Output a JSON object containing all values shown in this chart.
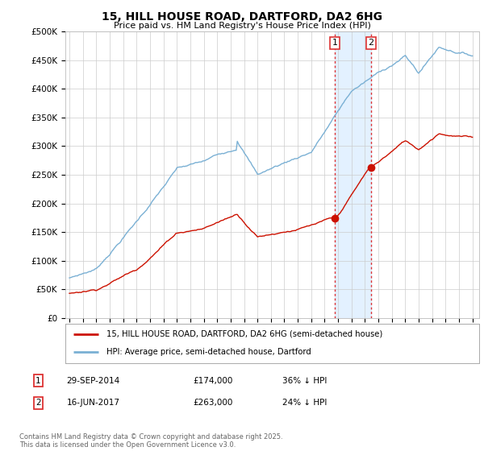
{
  "title": "15, HILL HOUSE ROAD, DARTFORD, DA2 6HG",
  "subtitle": "Price paid vs. HM Land Registry's House Price Index (HPI)",
  "ylabel_ticks": [
    "£0",
    "£50K",
    "£100K",
    "£150K",
    "£200K",
    "£250K",
    "£300K",
    "£350K",
    "£400K",
    "£450K",
    "£500K"
  ],
  "ytick_values": [
    0,
    50000,
    100000,
    150000,
    200000,
    250000,
    300000,
    350000,
    400000,
    450000,
    500000
  ],
  "xlim_start": 1994.7,
  "xlim_end": 2025.5,
  "ylim": [
    0,
    500000
  ],
  "hpi_color": "#7ab0d4",
  "price_color": "#cc1100",
  "shade_color": "#ddeeff",
  "vline_color": "#dd3333",
  "transaction1_date": 2014.75,
  "transaction2_date": 2017.46,
  "transaction1_price": 174000,
  "transaction2_price": 263000,
  "legend_label1": "15, HILL HOUSE ROAD, DARTFORD, DA2 6HG (semi-detached house)",
  "legend_label2": "HPI: Average price, semi-detached house, Dartford",
  "note1_num": "1",
  "note1_date": "29-SEP-2014",
  "note1_price": "£174,000",
  "note1_hpi": "36% ↓ HPI",
  "note2_num": "2",
  "note2_date": "16-JUN-2017",
  "note2_price": "£263,000",
  "note2_hpi": "24% ↓ HPI",
  "footer": "Contains HM Land Registry data © Crown copyright and database right 2025.\nThis data is licensed under the Open Government Licence v3.0.",
  "background_color": "#ffffff",
  "grid_color": "#cccccc"
}
